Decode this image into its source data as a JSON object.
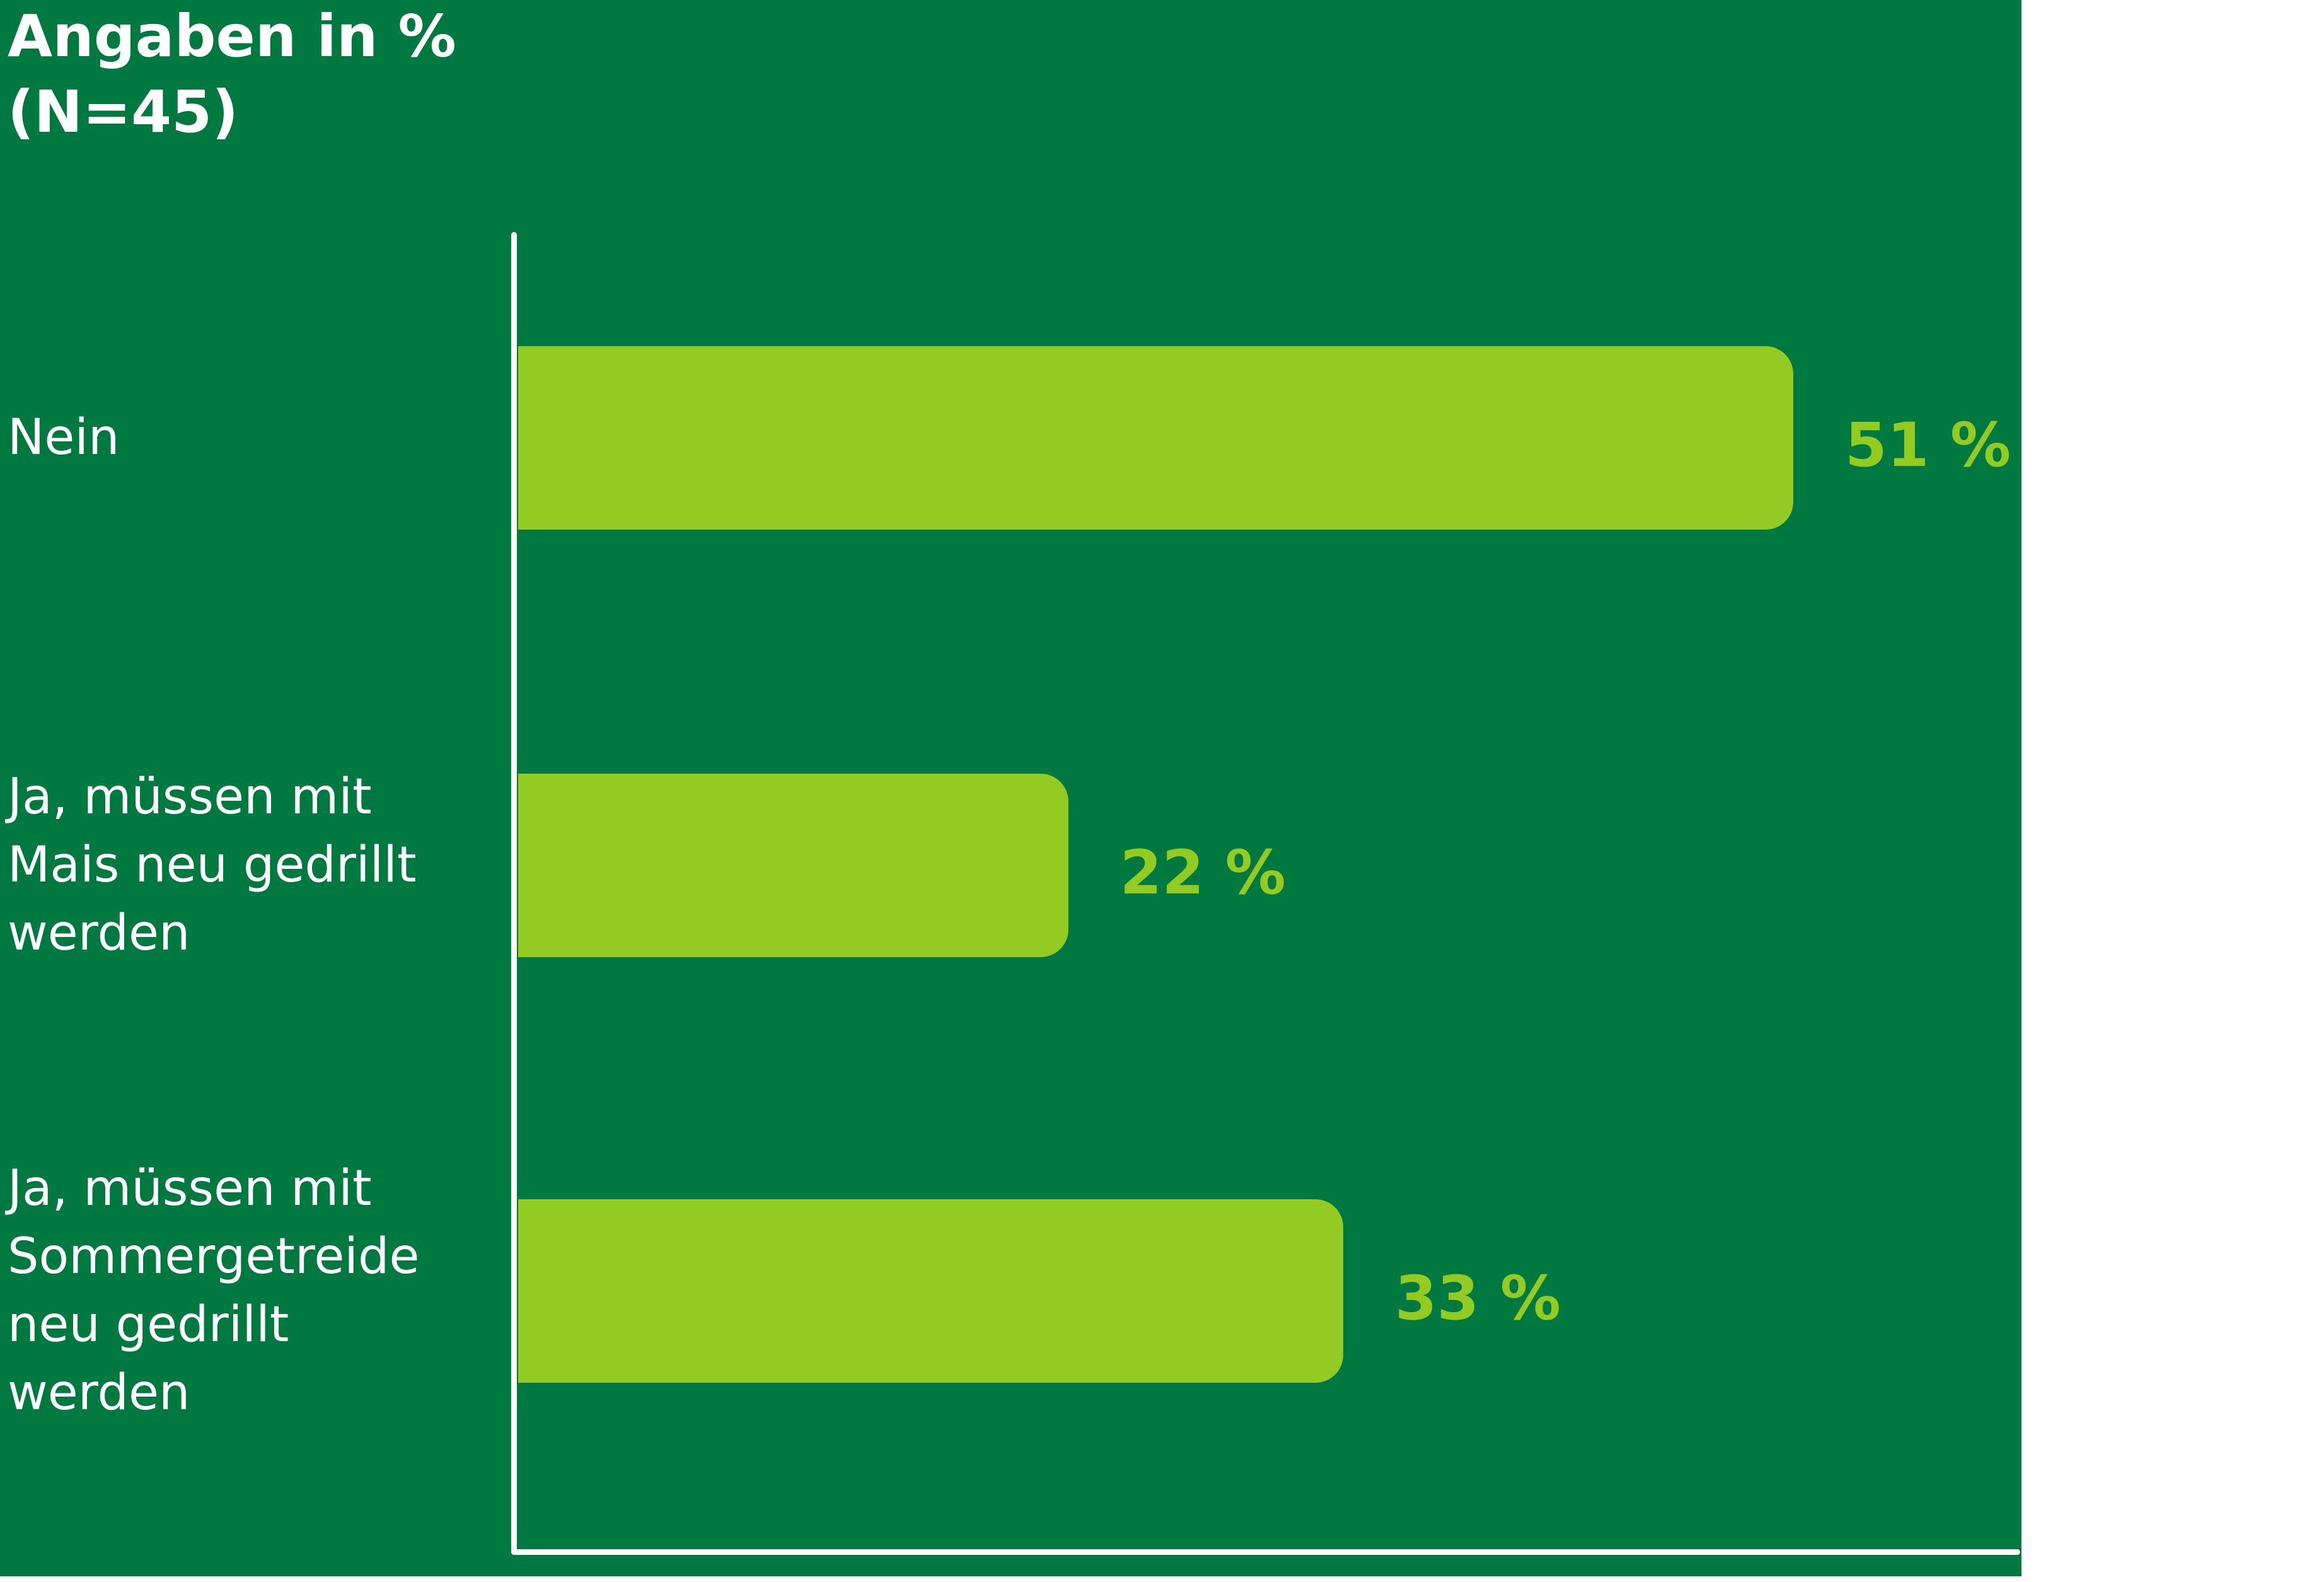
{
  "chart_data": {
    "type": "bar",
    "orientation": "horizontal",
    "title": "Angaben in %",
    "subtitle": "(N=45)",
    "categories": [
      "Nein",
      "Ja, müssen mit Mais neu gedrillt werden",
      "Ja, müssen mit Sommergetreide neu gedrillt werden"
    ],
    "values": [
      51,
      22,
      33
    ],
    "value_labels": [
      "51 %",
      "22 %",
      "33 %"
    ],
    "color": "#93cb22",
    "xlim": [
      0,
      60
    ]
  }
}
